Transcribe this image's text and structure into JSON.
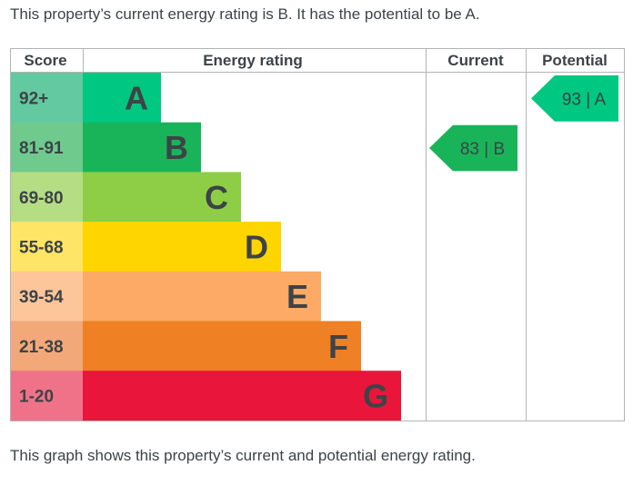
{
  "intro_text": "This property’s current energy rating is B. It has the potential to be A.",
  "footer_text": "This graph shows this property’s current and potential energy rating.",
  "chart_data": {
    "type": "table",
    "title": "Energy rating",
    "columns": [
      "Score",
      "Energy rating",
      "Current",
      "Potential"
    ],
    "bands": [
      {
        "letter": "A",
        "range": "92+",
        "color": "#00c781",
        "score_bg": "#63c9a0"
      },
      {
        "letter": "B",
        "range": "81-91",
        "color": "#19b459",
        "score_bg": "#6fca8d"
      },
      {
        "letter": "C",
        "range": "69-80",
        "color": "#8dce46",
        "score_bg": "#b5dd83"
      },
      {
        "letter": "D",
        "range": "55-68",
        "color": "#ffd500",
        "score_bg": "#ffe566"
      },
      {
        "letter": "E",
        "range": "39-54",
        "color": "#fcaa65",
        "score_bg": "#fdc59a"
      },
      {
        "letter": "F",
        "range": "21-38",
        "color": "#ef8023",
        "score_bg": "#f3a87a"
      },
      {
        "letter": "G",
        "range": "1-20",
        "color": "#e9153b",
        "score_bg": "#f07289"
      }
    ],
    "current": {
      "value": 83,
      "letter": "B",
      "label": "83 | B",
      "color": "#19b459"
    },
    "potential": {
      "value": 93,
      "letter": "A",
      "label": "93 | A",
      "color": "#00c781"
    }
  }
}
